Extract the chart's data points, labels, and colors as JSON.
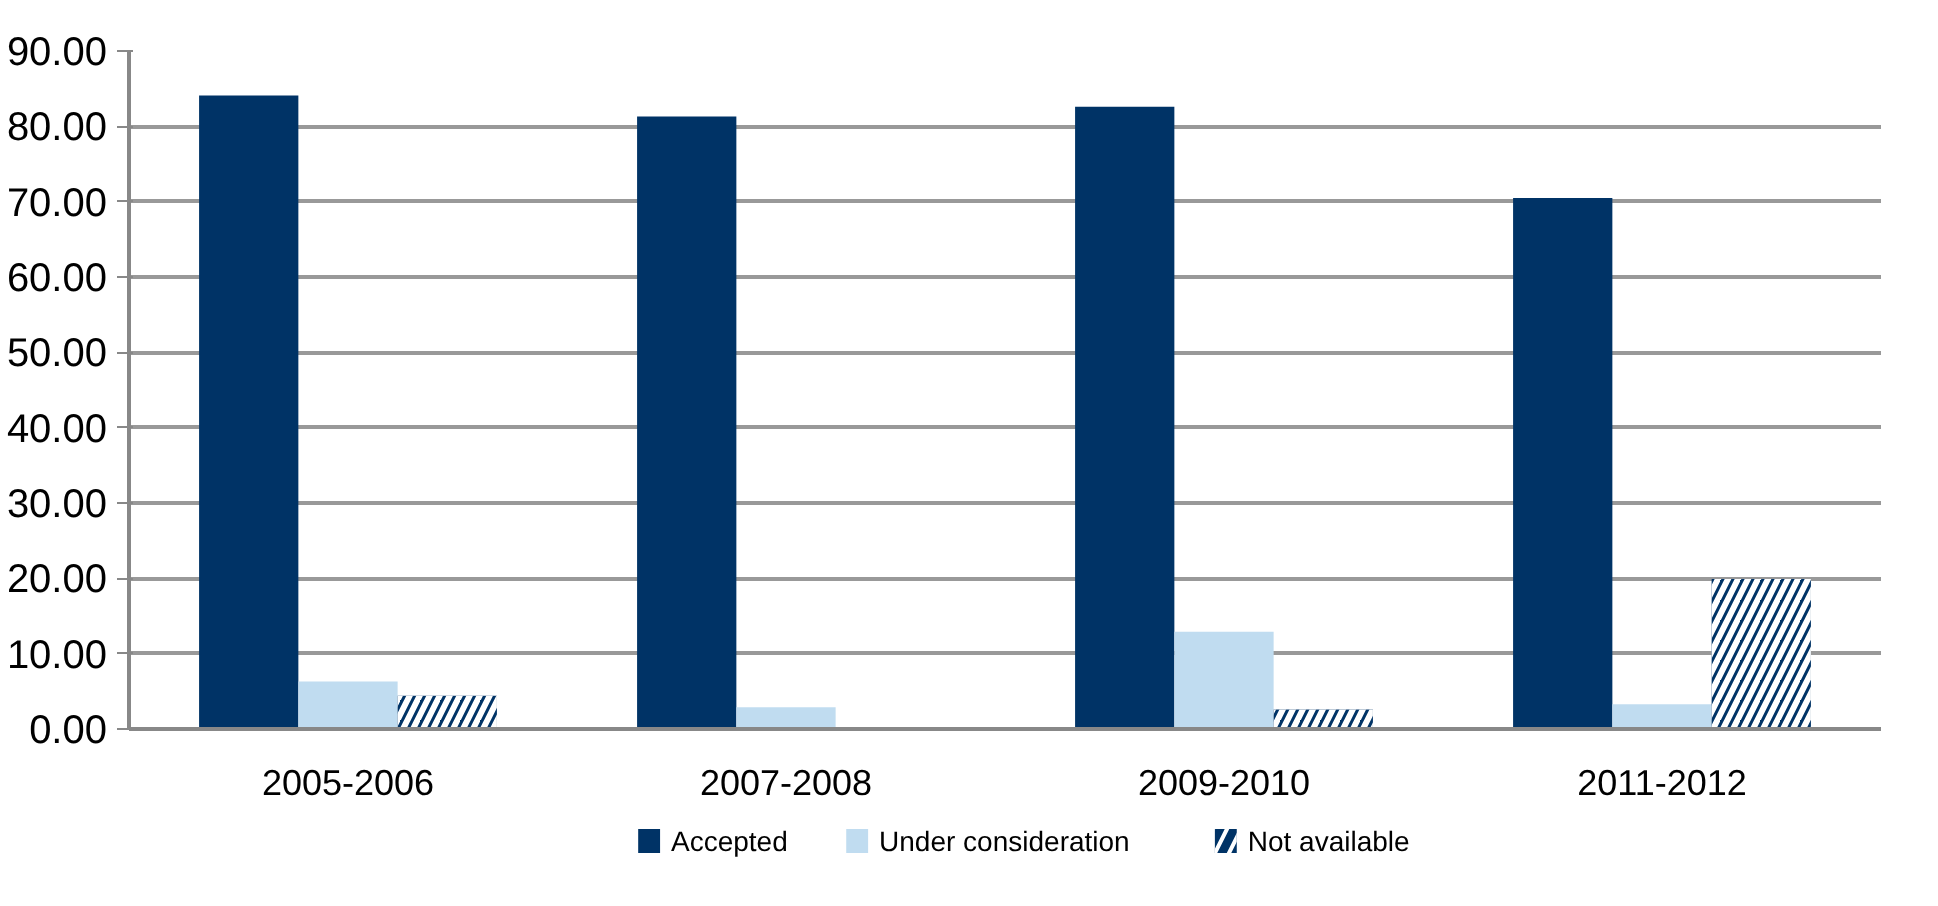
{
  "chart_data": {
    "type": "bar",
    "categories": [
      "2005-2006",
      "2007-2008",
      "2009-2010",
      "2011-2012"
    ],
    "series": [
      {
        "name": "Accepted",
        "color": "#003366",
        "values": [
          84.1,
          81.3,
          82.6,
          70.5
        ]
      },
      {
        "name": "Under consideration",
        "color": "#c0dcf0",
        "values": [
          6.3,
          2.9,
          12.9,
          3.3
        ]
      },
      {
        "name": "Not available",
        "color": "#003366",
        "values": [
          4.4,
          0,
          2.6,
          19.9
        ]
      }
    ],
    "ylim": [
      0,
      90
    ],
    "yticks": [
      {
        "value": 0,
        "label": "0.00"
      },
      {
        "value": 10,
        "label": "10.00"
      },
      {
        "value": 20,
        "label": "20.00"
      },
      {
        "value": 30,
        "label": "30.00"
      },
      {
        "value": 40,
        "label": "40.00"
      },
      {
        "value": 50,
        "label": "50.00"
      },
      {
        "value": 60,
        "label": "60.00"
      },
      {
        "value": 70,
        "label": "70.00"
      },
      {
        "value": 80,
        "label": "80.00"
      },
      {
        "value": 90,
        "label": "90.00"
      }
    ],
    "grid": "y",
    "legend": "bottom"
  }
}
